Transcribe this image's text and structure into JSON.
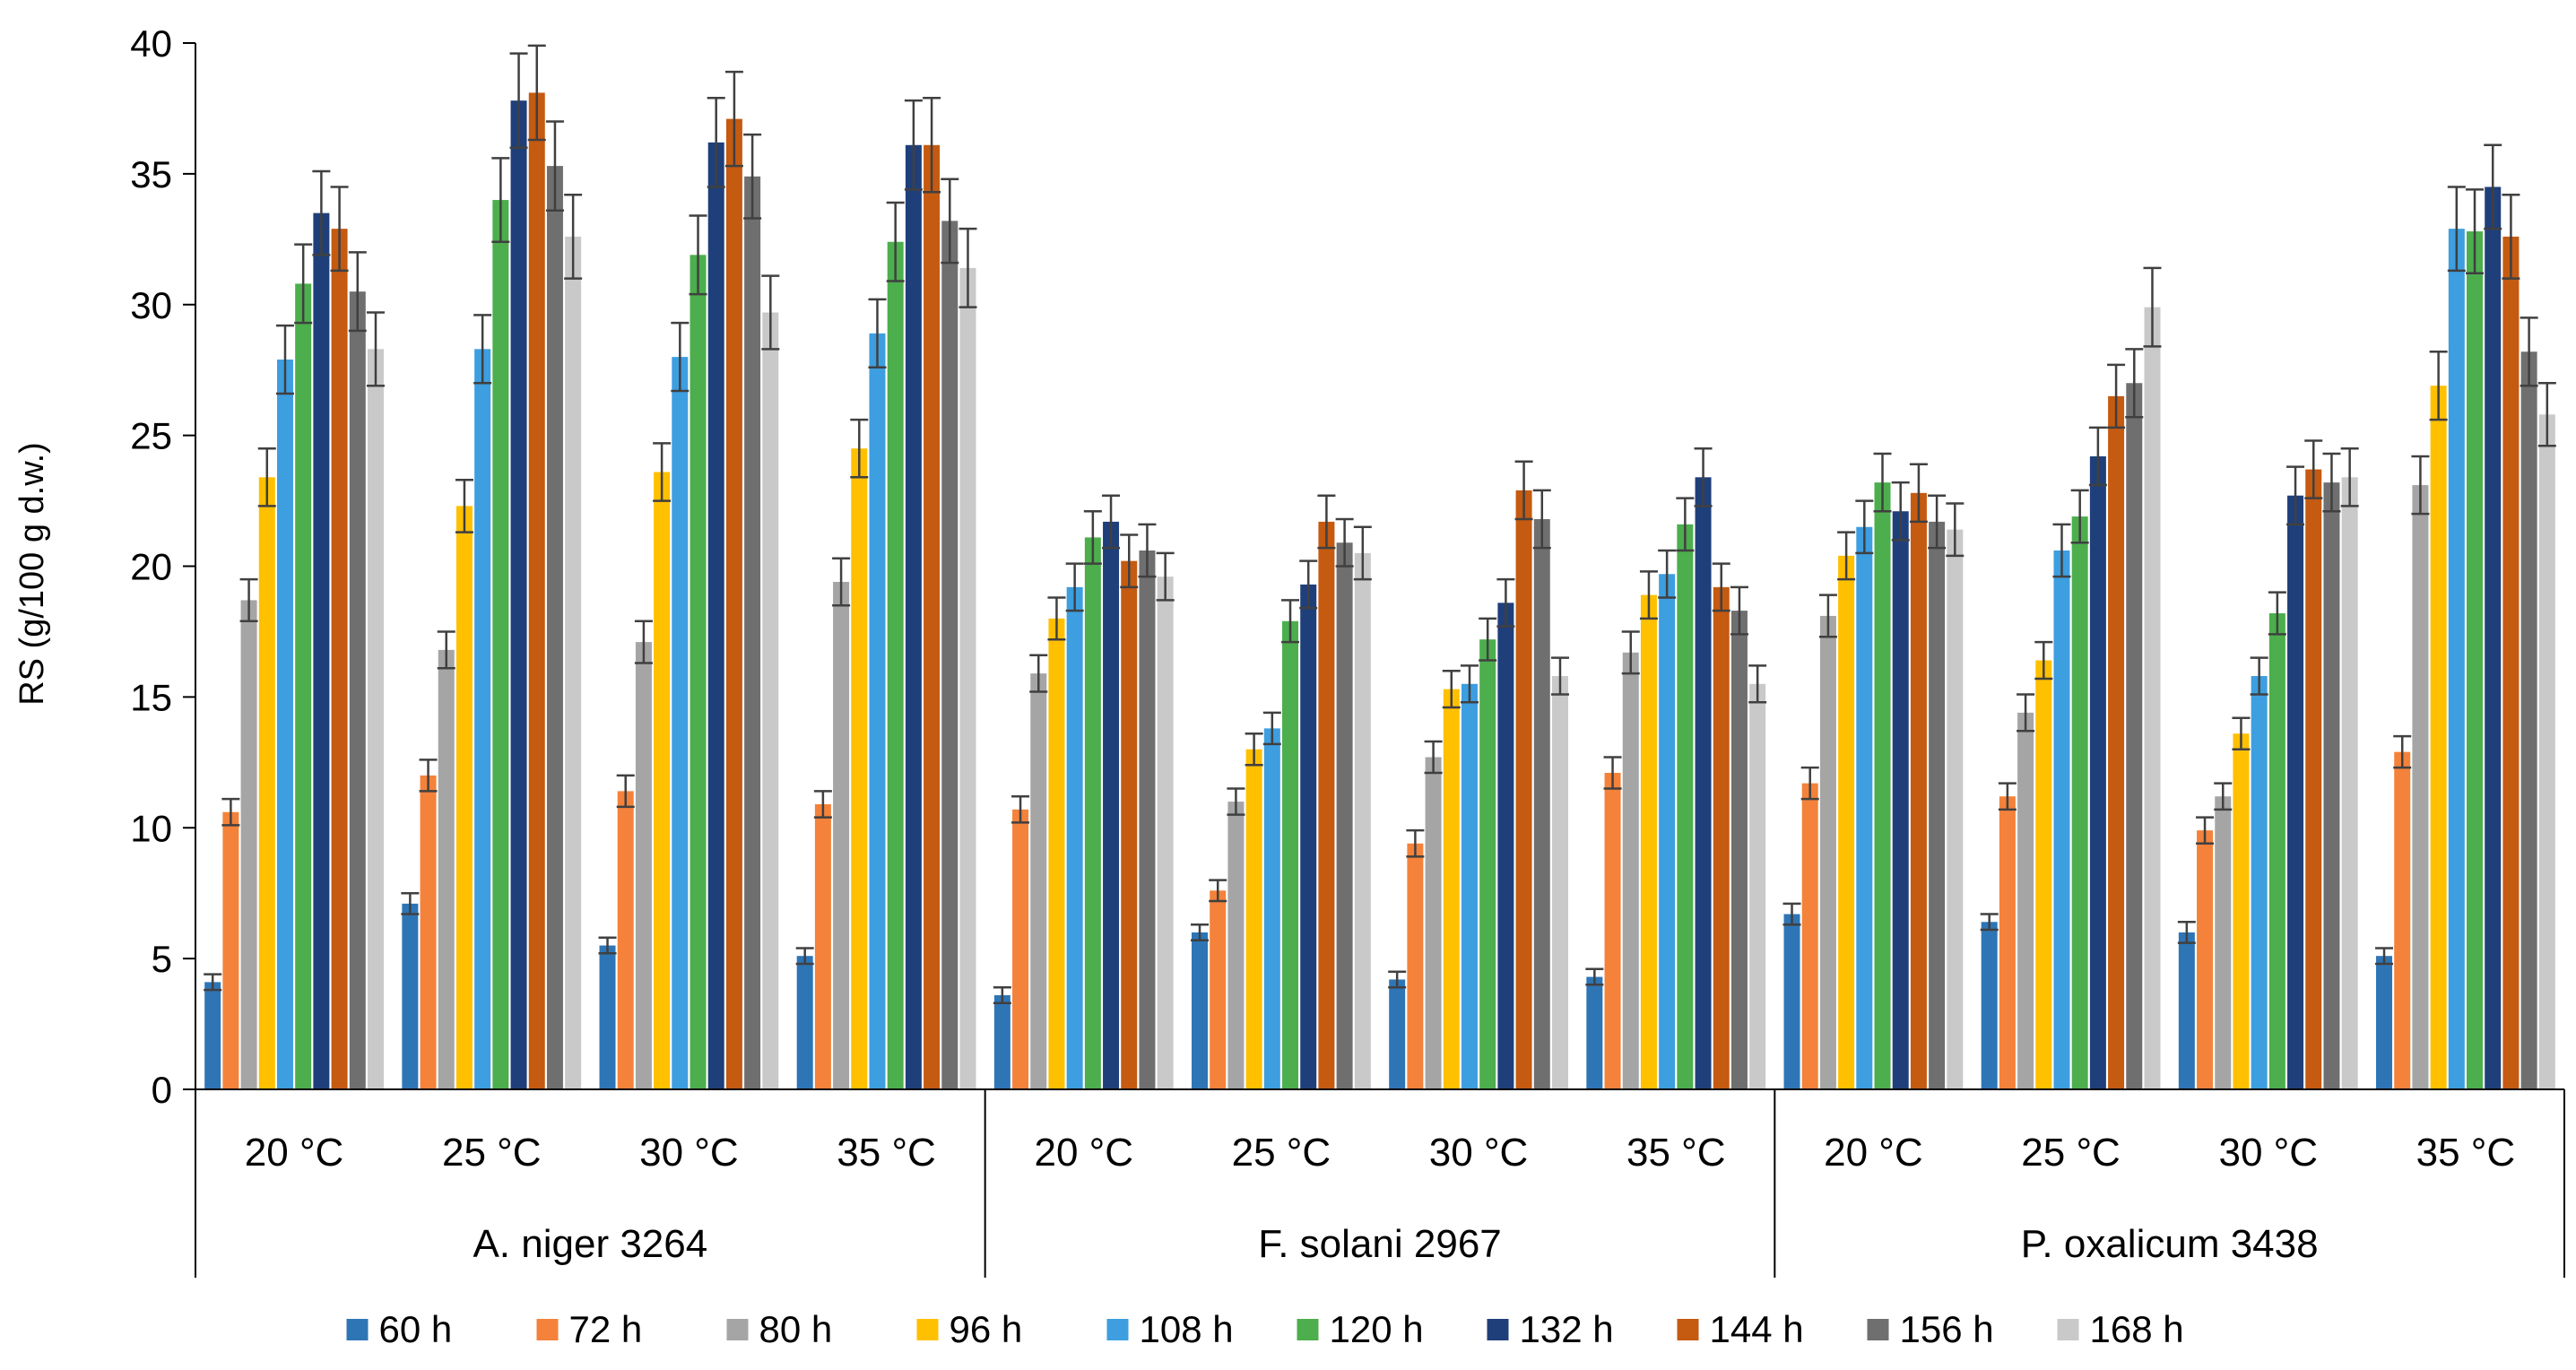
{
  "chart_data": {
    "type": "bar",
    "title": "",
    "ylabel": "RS (g/100 g d.w.)",
    "xlabel": "",
    "ylim": [
      0,
      40
    ],
    "yticks": [
      0,
      5,
      10,
      15,
      20,
      25,
      30,
      35,
      40
    ],
    "grid": false,
    "legend_position": "bottom",
    "error_bars": true,
    "groups": [
      {
        "name": "A. niger 3264",
        "categories": [
          "20 °C",
          "25 °C",
          "30 °C",
          "35 °C"
        ]
      },
      {
        "name": "F. solani 2967",
        "categories": [
          "20 °C",
          "25 °C",
          "30 °C",
          "35 °C"
        ]
      },
      {
        "name": "P. oxalicum 3438",
        "categories": [
          "20 °C",
          "25 °C",
          "30 °C",
          "35 °C"
        ]
      }
    ],
    "series": [
      {
        "name": "60 h",
        "color": "#2e75b6",
        "values": [
          4.1,
          7.1,
          5.5,
          5.1,
          3.6,
          6.0,
          4.2,
          4.3,
          6.7,
          6.4,
          6.0,
          5.1
        ],
        "errors": [
          0.3,
          0.4,
          0.3,
          0.3,
          0.3,
          0.3,
          0.3,
          0.3,
          0.4,
          0.3,
          0.4,
          0.3
        ]
      },
      {
        "name": "72 h",
        "color": "#f4823a",
        "values": [
          10.6,
          12.0,
          11.4,
          10.9,
          10.7,
          7.6,
          9.4,
          12.1,
          11.7,
          11.2,
          9.9,
          12.9
        ],
        "errors": [
          0.5,
          0.6,
          0.6,
          0.5,
          0.5,
          0.4,
          0.5,
          0.6,
          0.6,
          0.5,
          0.5,
          0.6
        ]
      },
      {
        "name": "80 h",
        "color": "#a5a5a5",
        "values": [
          18.7,
          16.8,
          17.1,
          19.4,
          15.9,
          11.0,
          12.7,
          16.7,
          18.1,
          14.4,
          11.2,
          23.1
        ],
        "errors": [
          0.8,
          0.7,
          0.8,
          0.9,
          0.7,
          0.5,
          0.6,
          0.8,
          0.8,
          0.7,
          0.5,
          1.1
        ]
      },
      {
        "name": "96 h",
        "color": "#ffc000",
        "values": [
          23.4,
          22.3,
          23.6,
          24.5,
          18.0,
          13.0,
          15.3,
          18.9,
          20.4,
          16.4,
          13.6,
          26.9
        ],
        "errors": [
          1.1,
          1.0,
          1.1,
          1.1,
          0.8,
          0.6,
          0.7,
          0.9,
          0.9,
          0.7,
          0.6,
          1.3
        ]
      },
      {
        "name": "108 h",
        "color": "#3d9ee0",
        "values": [
          27.9,
          28.3,
          28.0,
          28.9,
          19.2,
          13.8,
          15.5,
          19.7,
          21.5,
          20.6,
          15.8,
          32.9
        ],
        "errors": [
          1.3,
          1.3,
          1.3,
          1.3,
          0.9,
          0.6,
          0.7,
          0.9,
          1.0,
          1.0,
          0.7,
          1.6
        ]
      },
      {
        "name": "120 h",
        "color": "#4cae4c",
        "values": [
          30.8,
          34.0,
          31.9,
          32.4,
          21.1,
          17.9,
          17.2,
          21.6,
          23.2,
          21.9,
          18.2,
          32.8
        ],
        "errors": [
          1.5,
          1.6,
          1.5,
          1.5,
          1.0,
          0.8,
          0.8,
          1.0,
          1.1,
          1.0,
          0.8,
          1.6
        ]
      },
      {
        "name": "132 h",
        "color": "#1f3f7a",
        "values": [
          33.5,
          37.8,
          36.2,
          36.1,
          21.7,
          19.3,
          18.6,
          23.4,
          22.1,
          24.2,
          22.7,
          34.5
        ],
        "errors": [
          1.6,
          1.8,
          1.7,
          1.7,
          1.0,
          0.9,
          0.9,
          1.1,
          1.1,
          1.1,
          1.1,
          1.6
        ]
      },
      {
        "name": "144 h",
        "color": "#c55a11",
        "values": [
          32.9,
          38.1,
          37.1,
          36.1,
          20.2,
          21.7,
          22.9,
          19.2,
          22.8,
          26.5,
          23.7,
          32.6
        ],
        "errors": [
          1.6,
          1.8,
          1.8,
          1.8,
          1.0,
          1.0,
          1.1,
          0.9,
          1.1,
          1.2,
          1.1,
          1.6
        ]
      },
      {
        "name": "156 h",
        "color": "#6f6f6f",
        "values": [
          30.5,
          35.3,
          34.9,
          33.2,
          20.6,
          20.9,
          21.8,
          18.3,
          21.7,
          27.0,
          23.2,
          28.2
        ],
        "errors": [
          1.5,
          1.7,
          1.6,
          1.6,
          1.0,
          0.9,
          1.1,
          0.9,
          1.0,
          1.3,
          1.1,
          1.3
        ]
      },
      {
        "name": "168 h",
        "color": "#c9c9c9",
        "values": [
          28.3,
          32.6,
          29.7,
          31.4,
          19.6,
          20.5,
          15.8,
          15.5,
          21.4,
          29.9,
          23.4,
          25.8
        ],
        "errors": [
          1.4,
          1.6,
          1.4,
          1.5,
          0.9,
          1.0,
          0.7,
          0.7,
          1.0,
          1.5,
          1.1,
          1.2
        ]
      }
    ]
  }
}
